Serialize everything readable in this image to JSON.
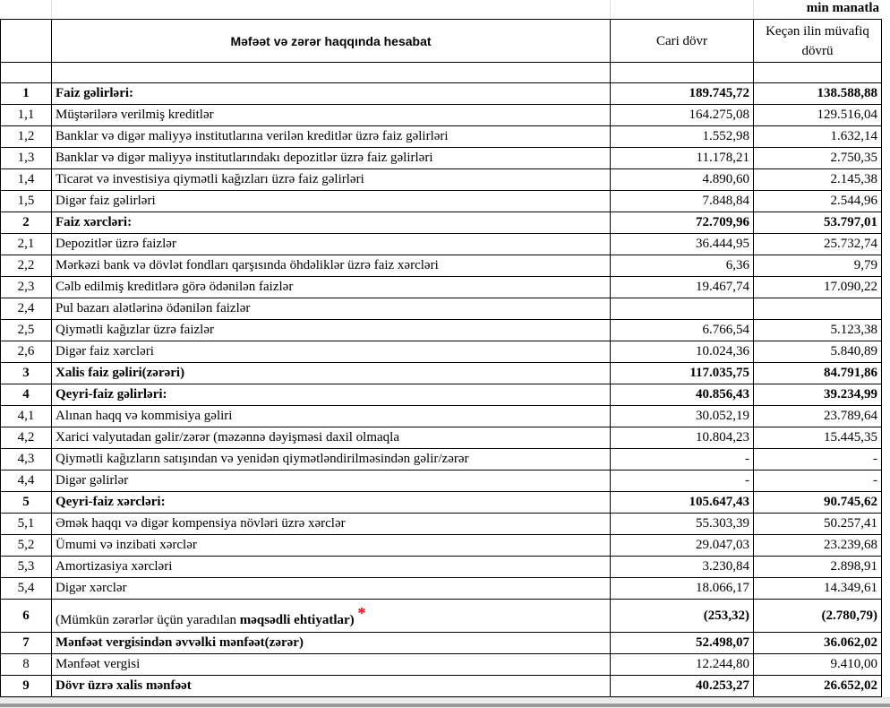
{
  "unit_label": "min manatla",
  "header": {
    "title": "Məfəət və zərər haqqında hesabat",
    "col_current": "Cari dövr",
    "col_previous": "Keçən ilin müvafiq dövrü"
  },
  "rows": [
    {
      "no": "1",
      "label": "Faiz gəlirləri:",
      "cur": "189.745,72",
      "prev": "138.588,88",
      "bold": true
    },
    {
      "no": "1,1",
      "label": "Müştərilərə verilmiş kreditlər",
      "cur": "164.275,08",
      "prev": "129.516,04"
    },
    {
      "no": "1,2",
      "label": "Banklar və digər maliyyə institutlarına verilən kreditlər üzrə faiz gəlirləri",
      "cur": "1.552,98",
      "prev": "1.632,14"
    },
    {
      "no": "1,3",
      "label": "Banklar və digər maliyyə institutlarındakı depozitlər üzrə faiz gəlirləri",
      "cur": "11.178,21",
      "prev": "2.750,35"
    },
    {
      "no": "1,4",
      "label": "Ticarət və investisiya qiymətli kağızları üzrə faiz gəlirləri",
      "cur": "4.890,60",
      "prev": "2.145,38"
    },
    {
      "no": "1,5",
      "label": "Digər faiz gəlirləri",
      "cur": "7.848,84",
      "prev": "2.544,96"
    },
    {
      "no": "2",
      "label": "Faiz xərcləri:",
      "cur": "72.709,96",
      "prev": "53.797,01",
      "bold": true
    },
    {
      "no": "2,1",
      "label": "Depozitlər üzrə faizlər",
      "cur": "36.444,95",
      "prev": "25.732,74"
    },
    {
      "no": "2,2",
      "label": "Mərkəzi bank və dövlət fondları qarşısında öhdəliklər üzrə faiz xərcləri",
      "cur": "6,36",
      "prev": "9,79"
    },
    {
      "no": "2,3",
      "label": "Cəlb edilmiş kreditlərə görə ödənilən faizlər",
      "cur": "19.467,74",
      "prev": "17.090,22"
    },
    {
      "no": "2,4",
      "label": "Pul bazarı alətlərinə ödənilən faizlər",
      "cur": "",
      "prev": ""
    },
    {
      "no": "2,5",
      "label": "Qiymətli kağızlar üzrə faizlər",
      "cur": "6.766,54",
      "prev": "5.123,38"
    },
    {
      "no": "2,6",
      "label": "Digər faiz xərcləri",
      "cur": "10.024,36",
      "prev": "5.840,89"
    },
    {
      "no": "3",
      "label": "Xalis faiz gəliri(zərəri)",
      "cur": "117.035,75",
      "prev": "84.791,86",
      "bold": true
    },
    {
      "no": "4",
      "label": "Qeyri-faiz gəlirləri:",
      "cur": "40.856,43",
      "prev": "39.234,99",
      "bold": true
    },
    {
      "no": "4,1",
      "label": "Alınan haqq və kommisiya gəliri",
      "cur": "30.052,19",
      "prev": "23.789,64"
    },
    {
      "no": "4,2",
      "label": "Xarici valyutadan gəlir/zərər (məzənnə dəyişməsi daxil olmaqla",
      "cur": "10.804,23",
      "prev": "15.445,35"
    },
    {
      "no": "4,3",
      "label": "Qiymətli kağızların satışından və yenidən qiymətləndirilməsindən gəlir/zərər",
      "cur": "-",
      "prev": "-"
    },
    {
      "no": "4,4",
      "label": "Digər gəlirlər",
      "cur": "-",
      "prev": "-"
    },
    {
      "no": "5",
      "label": "Qeyri-faiz xərcləri:",
      "cur": "105.647,43",
      "prev": "90.745,62",
      "bold": true
    },
    {
      "no": "5,1",
      "label": "Əmək haqqı və digər kompensiya növləri üzrə xərclər",
      "cur": "55.303,39",
      "prev": "50.257,41"
    },
    {
      "no": "5,2",
      "label": "Ümumi və inzibati xərclər",
      "cur": "29.047,03",
      "prev": "23.239,68"
    },
    {
      "no": "5,3",
      "label": "Amortizasiya xərcləri",
      "cur": "3.230,84",
      "prev": "2.898,91"
    },
    {
      "no": "5,4",
      "label": "Digər xərclər",
      "cur": "18.066,17",
      "prev": "14.349,61"
    }
  ],
  "row6": {
    "no": "6",
    "label_plain": "(Mümkün zərərlər üçün yaradılan ",
    "label_bold": "məqsədli ehtiyatlar)",
    "star": "*",
    "cur": "(253,32)",
    "prev": "(2.780,79)"
  },
  "rows_end": [
    {
      "no": "7",
      "label": "Mənfəət vergisindən əvvəlki mənfəət(zərər)",
      "cur": "52.498,07",
      "prev": "36.062,02",
      "bold": true
    },
    {
      "no": "8",
      "label": "Mənfəət vergisi",
      "cur": "12.244,80",
      "prev": "9.410,00"
    },
    {
      "no": "9",
      "label": "Dövr üzrə xalis mənfəət",
      "cur": "40.253,27",
      "prev": "26.652,02",
      "bold": true
    }
  ]
}
